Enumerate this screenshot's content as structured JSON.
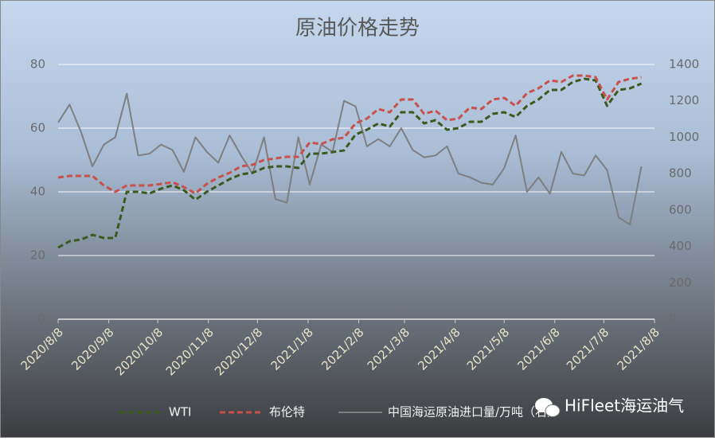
{
  "chart_data": {
    "type": "line",
    "title": "原油价格走势",
    "x": [
      "2020/8/8",
      "2020/8/15",
      "2020/8/22",
      "2020/8/29",
      "2020/9/5",
      "2020/9/12",
      "2020/9/19",
      "2020/9/26",
      "2020/10/3",
      "2020/10/10",
      "2020/10/17",
      "2020/10/24",
      "2020/10/31",
      "2020/11/7",
      "2020/11/14",
      "2020/11/21",
      "2020/11/28",
      "2020/12/5",
      "2020/12/12",
      "2020/12/19",
      "2020/12/26",
      "2021/1/2",
      "2021/1/9",
      "2021/1/16",
      "2021/1/23",
      "2021/1/30",
      "2021/2/6",
      "2021/2/13",
      "2021/2/20",
      "2021/2/27",
      "2021/3/6",
      "2021/3/13",
      "2021/3/20",
      "2021/3/27",
      "2021/4/3",
      "2021/4/10",
      "2021/4/17",
      "2021/4/24",
      "2021/5/1",
      "2021/5/8",
      "2021/5/15",
      "2021/5/22",
      "2021/5/29",
      "2021/6/5",
      "2021/6/12",
      "2021/6/19",
      "2021/6/26",
      "2021/7/3",
      "2021/7/10",
      "2021/7/17",
      "2021/7/24",
      "2021/7/31"
    ],
    "series": [
      {
        "name": "WTI",
        "color": "#3a5a1e",
        "dash": true,
        "values": [
          22.5,
          24.5,
          25,
          26.5,
          25.5,
          25.5,
          40,
          40,
          39.5,
          41,
          42,
          40.5,
          37.5,
          40,
          42,
          44,
          45.5,
          46,
          47.5,
          48,
          48,
          47.5,
          52,
          52,
          52.5,
          53,
          58,
          59.5,
          61.5,
          60.5,
          65,
          65,
          61.5,
          62.5,
          59.5,
          60,
          62,
          62,
          64.5,
          65,
          63.5,
          67,
          69,
          72,
          72,
          74.5,
          75.5,
          75,
          67,
          72,
          72.5,
          74
        ]
      },
      {
        "name": "布伦特",
        "color": "#c9504b",
        "dash": true,
        "values": [
          44.5,
          45,
          45,
          45,
          42,
          40,
          42,
          42,
          42,
          42.5,
          43,
          41.5,
          39.5,
          42.5,
          44.5,
          46,
          48,
          48.5,
          50,
          50.5,
          51,
          51,
          55.5,
          55,
          56.5,
          57,
          61.5,
          63,
          66,
          65,
          69,
          69,
          64.5,
          65.5,
          62.5,
          63,
          66.5,
          66,
          69,
          69.5,
          67,
          71,
          72.5,
          75,
          74.5,
          76.5,
          76.5,
          76,
          69,
          74.5,
          75.5,
          76
        ]
      },
      {
        "name": "中国海运原油进口量/万吨（右）",
        "color": "#7f7f7f",
        "dash": false,
        "axis": "y2",
        "values": [
          1080,
          1180,
          1030,
          840,
          960,
          1000,
          1240,
          900,
          910,
          960,
          930,
          810,
          1000,
          920,
          860,
          1010,
          900,
          800,
          1000,
          660,
          640,
          1000,
          740,
          960,
          920,
          1200,
          1170,
          950,
          990,
          950,
          1050,
          930,
          890,
          900,
          950,
          800,
          780,
          750,
          740,
          830,
          1010,
          700,
          780,
          690,
          920,
          800,
          790,
          900,
          820,
          560,
          520,
          840
        ]
      }
    ],
    "xlim": [
      "2020/8/8",
      "2021/8/8"
    ],
    "xticks": [
      "2020/8/8",
      "2020/9/8",
      "2020/10/8",
      "2020/11/8",
      "2020/12/8",
      "2021/1/8",
      "2021/2/8",
      "2021/3/8",
      "2021/4/8",
      "2021/5/8",
      "2021/6/8",
      "2021/7/8",
      "2021/8/8"
    ],
    "ylim": [
      0,
      80
    ],
    "yticks": [
      0,
      20,
      40,
      60,
      80
    ],
    "y2lim": [
      0,
      1400
    ],
    "y2ticks": [
      0,
      200,
      400,
      600,
      800,
      1000,
      1200,
      1400
    ],
    "grid": true,
    "legend": "bottom",
    "watermark": "HiFleet海运油气"
  }
}
